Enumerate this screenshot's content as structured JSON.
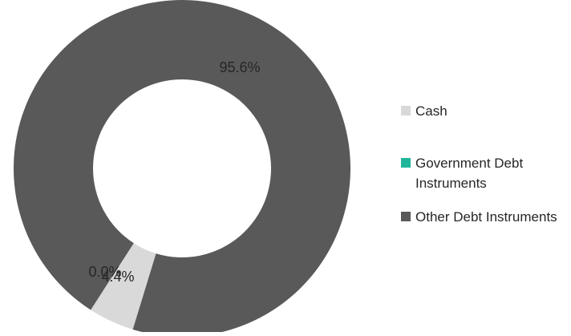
{
  "chart_data": {
    "type": "pie",
    "variant": "donut",
    "categories": [
      "Cash",
      "Government Debt Instruments",
      "Other Debt Instruments"
    ],
    "values": [
      4.4,
      0.0,
      95.6
    ],
    "value_labels": [
      "4.4%",
      "0.0%",
      "95.6%"
    ],
    "colors": [
      "#d9d9d9",
      "#1fb59a",
      "#595959"
    ],
    "legend_position": "right",
    "legend_lines": [
      [
        "Cash"
      ],
      [
        "Government Debt",
        "Instruments"
      ],
      [
        "Other Debt Instruments"
      ]
    ],
    "title": ""
  }
}
